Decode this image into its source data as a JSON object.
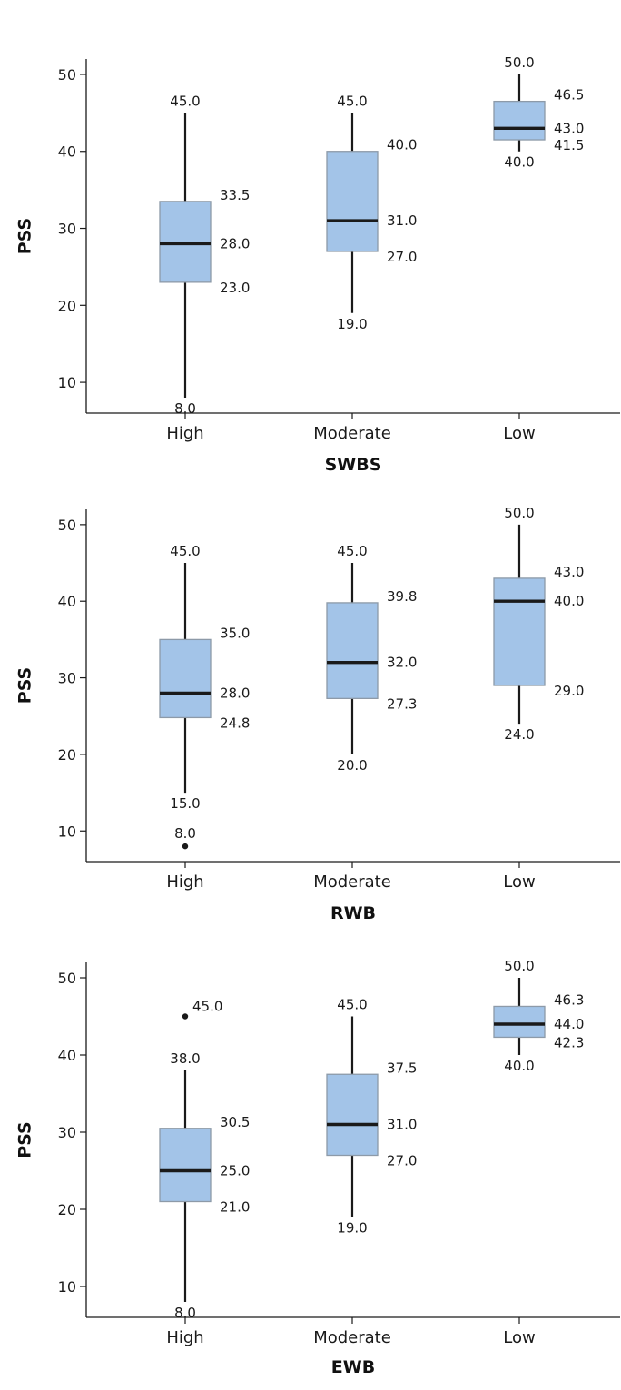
{
  "colors": {
    "box_fill": "#a3c4e8",
    "box_stroke": "#8d9aa8",
    "ink": "#1a1a1a"
  },
  "chart_data": [
    {
      "type": "boxplot",
      "xlabel": "SWBS",
      "ylabel": "PSS",
      "ylim": [
        6,
        52
      ],
      "yticks": [
        10,
        20,
        30,
        40,
        50
      ],
      "ytick_labels": [
        "10",
        "20",
        "30",
        "40",
        "50"
      ],
      "categories": [
        "High",
        "Moderate",
        "Low"
      ],
      "boxes": [
        {
          "category": "High",
          "min": 8.0,
          "q1": 23.0,
          "median": 28.0,
          "q3": 33.5,
          "max": 45.0,
          "outliers": [],
          "labels": {
            "max": "45.0",
            "q3": "33.5",
            "median": "28.0",
            "q1": "23.0",
            "min": "8.0"
          }
        },
        {
          "category": "Moderate",
          "min": 19.0,
          "q1": 27.0,
          "median": 31.0,
          "q3": 40.0,
          "max": 45.0,
          "outliers": [],
          "labels": {
            "max": "45.0",
            "q3": "40.0",
            "median": "31.0",
            "q1": "27.0",
            "min": "19.0"
          }
        },
        {
          "category": "Low",
          "min": 40.0,
          "q1": 41.5,
          "median": 43.0,
          "q3": 46.5,
          "max": 50.0,
          "outliers": [],
          "labels": {
            "max": "50.0",
            "q3": "46.5",
            "median": "43.0",
            "q1": "41.5",
            "min": "40.0"
          }
        }
      ]
    },
    {
      "type": "boxplot",
      "xlabel": "RWB",
      "ylabel": "PSS",
      "ylim": [
        6,
        52
      ],
      "yticks": [
        10,
        20,
        30,
        40,
        50
      ],
      "ytick_labels": [
        "10",
        "20",
        "30",
        "40",
        "50"
      ],
      "categories": [
        "High",
        "Moderate",
        "Low"
      ],
      "boxes": [
        {
          "category": "High",
          "min": 15.0,
          "q1": 24.8,
          "median": 28.0,
          "q3": 35.0,
          "max": 45.0,
          "outliers": [
            8.0
          ],
          "labels": {
            "max": "45.0",
            "q3": "35.0",
            "median": "28.0",
            "q1": "24.8",
            "min": "15.0",
            "outliers": [
              "8.0"
            ]
          }
        },
        {
          "category": "Moderate",
          "min": 20.0,
          "q1": 27.3,
          "median": 32.0,
          "q3": 39.8,
          "max": 45.0,
          "outliers": [],
          "labels": {
            "max": "45.0",
            "q3": "39.8",
            "median": "32.0",
            "q1": "27.3",
            "min": "20.0"
          }
        },
        {
          "category": "Low",
          "min": 24.0,
          "q1": 29.0,
          "median": 40.0,
          "q3": 43.0,
          "max": 50.0,
          "outliers": [],
          "labels": {
            "max": "50.0",
            "q3": "43.0",
            "median": "40.0",
            "q1": "29.0",
            "min": "24.0"
          }
        }
      ]
    },
    {
      "type": "boxplot",
      "xlabel": "EWB",
      "ylabel": "PSS",
      "ylim": [
        6,
        52
      ],
      "yticks": [
        10,
        20,
        30,
        40,
        50
      ],
      "ytick_labels": [
        "10",
        "20",
        "30",
        "40",
        "50"
      ],
      "categories": [
        "High",
        "Moderate",
        "Low"
      ],
      "boxes": [
        {
          "category": "High",
          "min": 8.0,
          "q1": 21.0,
          "median": 25.0,
          "q3": 30.5,
          "max": 38.0,
          "outliers": [
            45.0
          ],
          "labels": {
            "max": "38.0",
            "q3": "30.5",
            "median": "25.0",
            "q1": "21.0",
            "min": "8.0",
            "outliers": [
              "45.0"
            ]
          }
        },
        {
          "category": "Moderate",
          "min": 19.0,
          "q1": 27.0,
          "median": 31.0,
          "q3": 37.5,
          "max": 45.0,
          "outliers": [],
          "labels": {
            "max": "45.0",
            "q3": "37.5",
            "median": "31.0",
            "q1": "27.0",
            "min": "19.0"
          }
        },
        {
          "category": "Low",
          "min": 40.0,
          "q1": 42.3,
          "median": 44.0,
          "q3": 46.3,
          "max": 50.0,
          "outliers": [],
          "labels": {
            "max": "50.0",
            "q3": "46.3",
            "median": "44.0",
            "q1": "42.3",
            "min": "40.0"
          }
        }
      ]
    }
  ]
}
